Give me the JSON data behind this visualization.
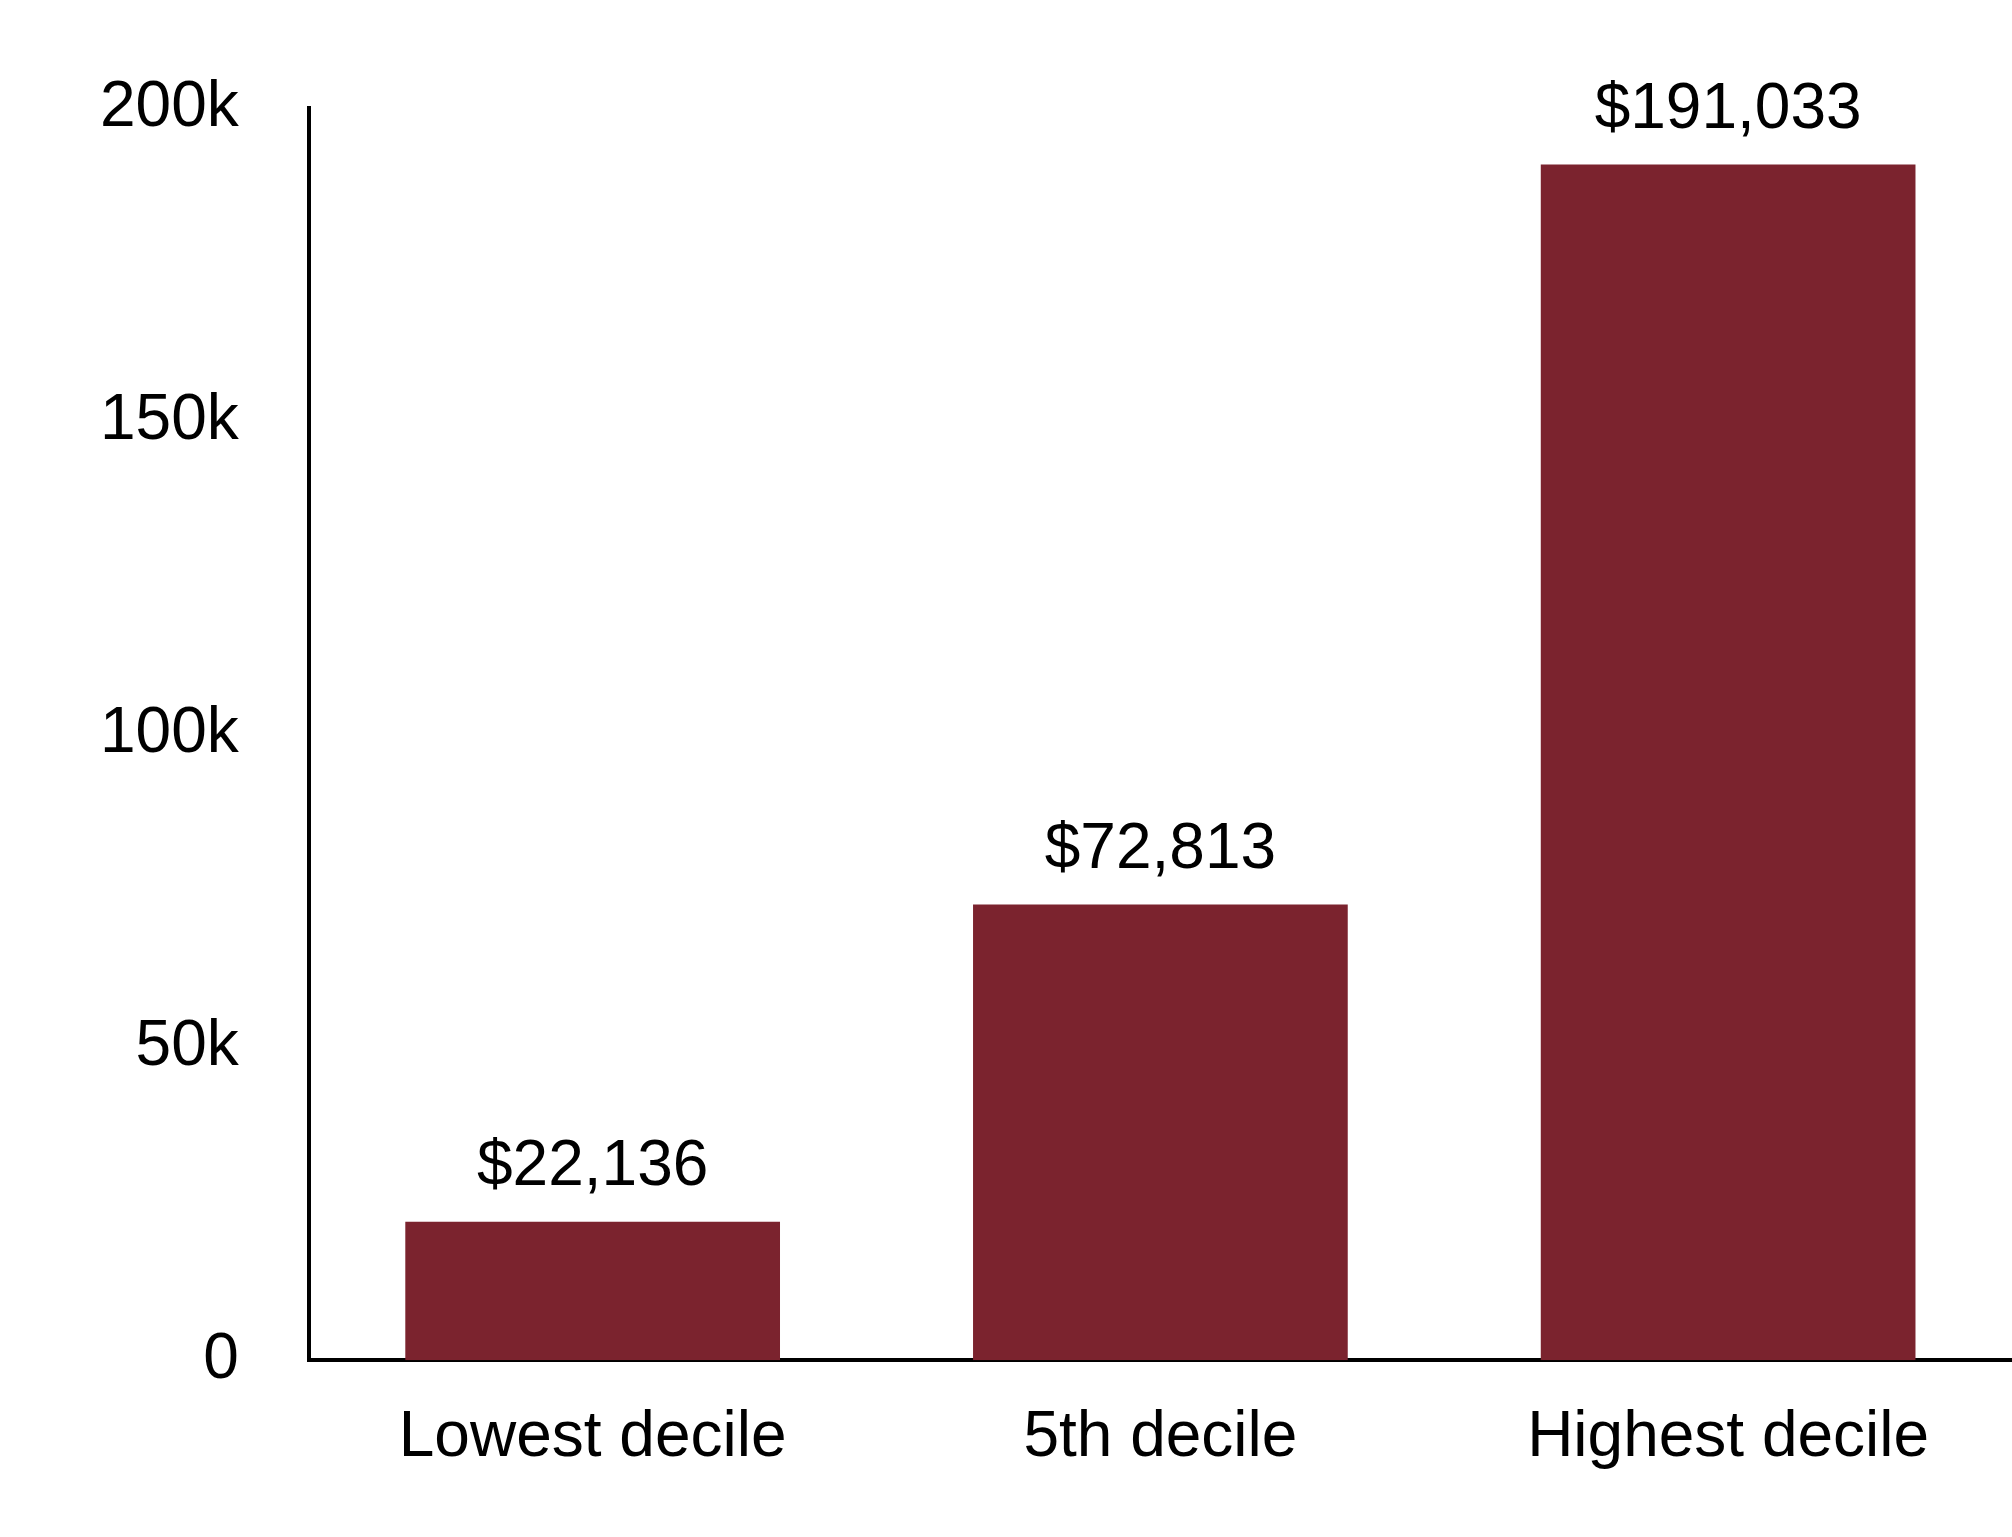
{
  "chart_data": {
    "type": "bar",
    "categories": [
      "Lowest decile",
      "5th decile",
      "Highest decile"
    ],
    "values": [
      22136,
      72813,
      191033
    ],
    "value_labels": [
      "$22,136",
      "$72,813",
      "$191,033"
    ],
    "color": "#7b232e",
    "ylim": [
      0,
      200000
    ],
    "yticks": [
      {
        "value": 0,
        "label": "0"
      },
      {
        "value": 50000,
        "label": "50k"
      },
      {
        "value": 100000,
        "label": "100k"
      },
      {
        "value": 150000,
        "label": "150k"
      },
      {
        "value": 200000,
        "label": "200k"
      }
    ],
    "grid": false,
    "legend": false
  }
}
